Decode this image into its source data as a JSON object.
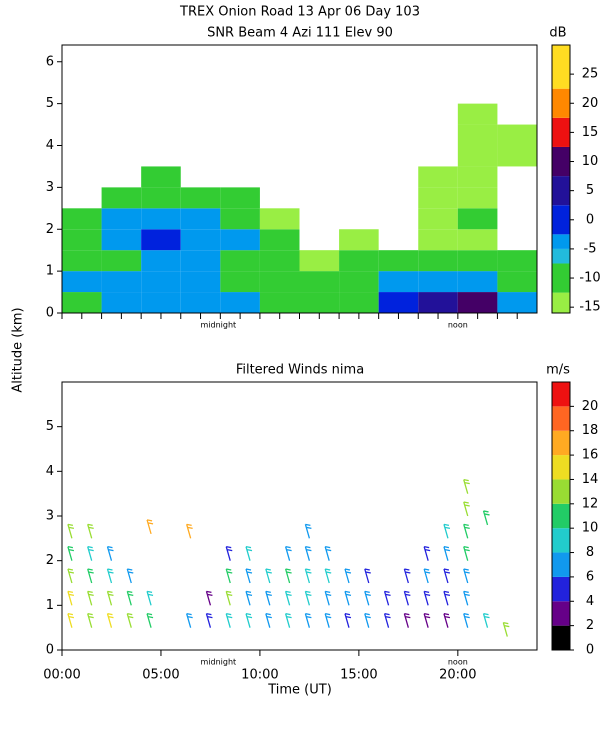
{
  "chart_data": [
    {
      "type": "heatmap",
      "title": "TREX Onion Road  13 Apr 06 Day 103",
      "subtitle": "SNR Beam 4 Azi 111 Elev 90",
      "ylabel": "Altitude (km)",
      "annotations": [
        {
          "text": "midnight",
          "x": 7.9
        },
        {
          "text": "noon",
          "x": 20.0
        }
      ],
      "xlim": [
        0,
        24
      ],
      "xminor": [
        0,
        1,
        2,
        3,
        4,
        5,
        6,
        7,
        8,
        9,
        10,
        11,
        12,
        13,
        14,
        15,
        16,
        17,
        18,
        19,
        20,
        21,
        22,
        23
      ],
      "ylim": [
        0,
        6.4
      ],
      "yticks": [
        0,
        1,
        2,
        3,
        4,
        5,
        6
      ],
      "xbins": [
        0,
        2,
        4,
        6,
        8,
        10,
        12,
        14,
        16,
        18,
        20,
        22,
        24
      ],
      "ybins": [
        0,
        0.5,
        1,
        1.5,
        2,
        2.5,
        3,
        3.5,
        4,
        4.5,
        5,
        5.5,
        6
      ],
      "values": [
        [
          -8,
          -5,
          -12,
          -8,
          -12,
          null,
          null,
          null,
          null,
          null,
          null,
          null
        ],
        [
          -5,
          -5,
          -10,
          -5,
          -3,
          -10,
          null,
          null,
          null,
          null,
          null,
          null
        ],
        [
          -3,
          -3,
          -5,
          0,
          -3,
          -8,
          -12,
          null,
          null,
          null,
          null,
          null
        ],
        [
          -5,
          -5,
          -5,
          -3,
          -5,
          -10,
          null,
          null,
          null,
          null,
          null,
          null
        ],
        [
          -5,
          -8,
          -8,
          -5,
          -10,
          -12,
          null,
          null,
          null,
          null,
          null,
          null
        ],
        [
          -8,
          -8,
          -12,
          -10,
          -13,
          null,
          null,
          null,
          null,
          null,
          null,
          null
        ],
        [
          -10,
          -10,
          -13,
          null,
          null,
          null,
          null,
          null,
          null,
          null,
          null,
          null
        ],
        [
          -8,
          -8,
          -12,
          -14,
          null,
          null,
          null,
          null,
          null,
          null,
          null,
          null
        ],
        [
          0,
          -5,
          -10,
          null,
          null,
          null,
          null,
          null,
          null,
          null,
          null,
          null
        ],
        [
          5,
          -3,
          -10,
          -14,
          -13,
          -13,
          -13,
          null,
          null,
          null,
          null,
          null
        ],
        [
          8,
          -3,
          -10,
          -13,
          -12,
          -13,
          -13,
          -13,
          -13,
          -13,
          null,
          null
        ],
        [
          -5,
          -8,
          -12,
          null,
          null,
          null,
          null,
          -13,
          -13,
          null,
          null,
          null
        ]
      ],
      "colorbar": {
        "label": "dB",
        "lim": [
          -16,
          30
        ],
        "ticks": [
          -15,
          -10,
          -5,
          0,
          5,
          10,
          15,
          20,
          25
        ],
        "bounds": [
          -16,
          -12.5,
          -7.5,
          -5,
          -2.5,
          2.5,
          7.5,
          12.5,
          17.5,
          22.5,
          30
        ],
        "colors": [
          "#99ee44",
          "#33cc33",
          "#22bbdd",
          "#0099ee",
          "#0022dd",
          "#221199",
          "#440066",
          "#ee1111",
          "#ff8800",
          "#ffdd22"
        ]
      }
    },
    {
      "type": "barbs",
      "title": "Filtered Winds nima",
      "xlabel": "Time (UT)",
      "annotations": [
        {
          "text": "midnight",
          "x": 7.9
        },
        {
          "text": "noon",
          "x": 20.0
        }
      ],
      "xlim": [
        0,
        24
      ],
      "xticks": [
        {
          "value": 0,
          "label": "00:00"
        },
        {
          "value": 5,
          "label": "05:00"
        },
        {
          "value": 10,
          "label": "10:00"
        },
        {
          "value": 15,
          "label": "15:00"
        },
        {
          "value": 20,
          "label": "20:00"
        }
      ],
      "ylim": [
        0,
        6
      ],
      "yticks": [
        0,
        1,
        2,
        3,
        4,
        5
      ],
      "points": [
        [
          0.5,
          0.5,
          14
        ],
        [
          0.5,
          1.0,
          14
        ],
        [
          0.5,
          1.5,
          12
        ],
        [
          0.5,
          2.0,
          10
        ],
        [
          0.5,
          2.5,
          12
        ],
        [
          1.5,
          0.5,
          12
        ],
        [
          1.5,
          1.0,
          12
        ],
        [
          1.5,
          1.5,
          10
        ],
        [
          1.5,
          2.0,
          8
        ],
        [
          1.5,
          2.5,
          12
        ],
        [
          2.5,
          0.5,
          14
        ],
        [
          2.5,
          1.0,
          12
        ],
        [
          2.5,
          1.5,
          8
        ],
        [
          2.5,
          2.0,
          6
        ],
        [
          3.5,
          0.5,
          12
        ],
        [
          3.5,
          1.0,
          10
        ],
        [
          3.5,
          1.5,
          6
        ],
        [
          4.5,
          0.5,
          10
        ],
        [
          4.5,
          1.0,
          8
        ],
        [
          4.5,
          2.6,
          16
        ],
        [
          6.5,
          0.5,
          6
        ],
        [
          6.5,
          2.5,
          16
        ],
        [
          7.5,
          0.5,
          4
        ],
        [
          7.5,
          1.0,
          2
        ],
        [
          8.5,
          0.5,
          8
        ],
        [
          8.5,
          1.0,
          12
        ],
        [
          8.5,
          1.5,
          10
        ],
        [
          8.5,
          2.0,
          4
        ],
        [
          9.5,
          0.5,
          8
        ],
        [
          9.5,
          1.0,
          6
        ],
        [
          9.5,
          1.5,
          6
        ],
        [
          9.5,
          2.0,
          8
        ],
        [
          10.5,
          0.5,
          6
        ],
        [
          10.5,
          1.0,
          6
        ],
        [
          10.5,
          1.5,
          8
        ],
        [
          11.5,
          0.5,
          8
        ],
        [
          11.5,
          1.0,
          8
        ],
        [
          11.5,
          1.5,
          10
        ],
        [
          11.5,
          2.0,
          6
        ],
        [
          12.5,
          0.5,
          6
        ],
        [
          12.5,
          1.0,
          8
        ],
        [
          12.5,
          1.5,
          8
        ],
        [
          12.5,
          2.0,
          6
        ],
        [
          12.5,
          2.5,
          6
        ],
        [
          13.5,
          0.5,
          6
        ],
        [
          13.5,
          1.0,
          6
        ],
        [
          13.5,
          1.5,
          8
        ],
        [
          13.5,
          2.0,
          6
        ],
        [
          14.5,
          0.5,
          4
        ],
        [
          14.5,
          1.0,
          6
        ],
        [
          14.5,
          1.5,
          6
        ],
        [
          15.5,
          0.5,
          6
        ],
        [
          15.5,
          1.0,
          6
        ],
        [
          15.5,
          1.5,
          4
        ],
        [
          16.5,
          0.5,
          4
        ],
        [
          16.5,
          1.0,
          4
        ],
        [
          17.5,
          0.5,
          2
        ],
        [
          17.5,
          1.0,
          4
        ],
        [
          17.5,
          1.5,
          4
        ],
        [
          18.5,
          0.5,
          2
        ],
        [
          18.5,
          1.0,
          4
        ],
        [
          18.5,
          1.5,
          6
        ],
        [
          18.5,
          2.0,
          4
        ],
        [
          19.5,
          0.5,
          2
        ],
        [
          19.5,
          1.0,
          4
        ],
        [
          19.5,
          1.5,
          4
        ],
        [
          19.5,
          2.0,
          6
        ],
        [
          19.5,
          2.5,
          8
        ],
        [
          20.5,
          0.5,
          6
        ],
        [
          20.5,
          1.0,
          6
        ],
        [
          20.5,
          1.5,
          6
        ],
        [
          20.5,
          2.0,
          10
        ],
        [
          20.5,
          2.5,
          10
        ],
        [
          20.5,
          3.0,
          12
        ],
        [
          20.5,
          3.5,
          12
        ],
        [
          21.5,
          0.5,
          8
        ],
        [
          21.5,
          2.8,
          10
        ],
        [
          22.5,
          0.3,
          12
        ]
      ],
      "colorbar": {
        "label": "m/s",
        "lim": [
          0,
          22
        ],
        "ticks": [
          0,
          2,
          4,
          6,
          8,
          10,
          12,
          14,
          16,
          18,
          20
        ],
        "bounds": [
          0,
          2,
          4,
          6,
          8,
          10,
          12,
          14,
          16,
          18,
          20,
          22
        ],
        "colors": [
          "#000000",
          "#660088",
          "#2222dd",
          "#1199ee",
          "#22cccc",
          "#22cc66",
          "#99dd33",
          "#eedd22",
          "#ffaa22",
          "#ff6622",
          "#ee1111"
        ]
      }
    }
  ]
}
